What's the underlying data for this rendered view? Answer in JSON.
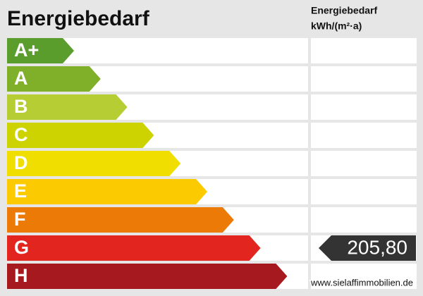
{
  "header": {
    "title": "Energiebedarf",
    "column_title": "Energiebedarf",
    "column_unit": "kWh/(m²·a)"
  },
  "classes": [
    {
      "label": "A+",
      "color": "#5b9d2d"
    },
    {
      "label": "A",
      "color": "#80af2a"
    },
    {
      "label": "B",
      "color": "#b7cd34"
    },
    {
      "label": "C",
      "color": "#cdd300"
    },
    {
      "label": "D",
      "color": "#f0de00"
    },
    {
      "label": "E",
      "color": "#fbca00"
    },
    {
      "label": "F",
      "color": "#ec7a07"
    },
    {
      "label": "G",
      "color": "#e2261f",
      "value": "205,80"
    },
    {
      "label": "H",
      "color": "#a6191f"
    }
  ],
  "watermark": "www.sielaffimmobilien.de"
}
